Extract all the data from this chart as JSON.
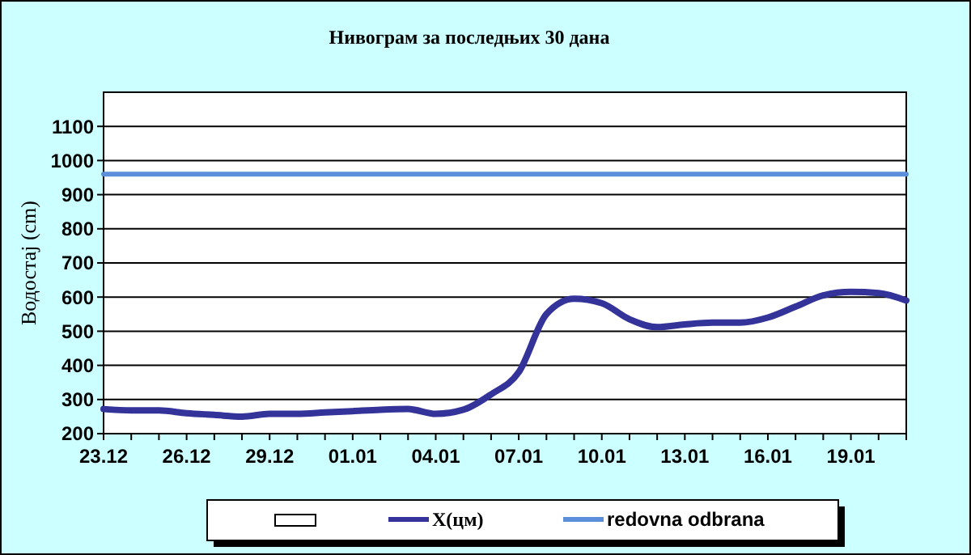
{
  "chart_data": {
    "type": "line",
    "title": "Нивограм за последњих 30 дана",
    "ylabel": "Водостај (cm)",
    "categories": [
      "23.12",
      null,
      null,
      "26.12",
      null,
      null,
      "29.12",
      null,
      null,
      "01.01",
      null,
      null,
      "04.01",
      null,
      null,
      "07.01",
      null,
      null,
      "10.01",
      null,
      null,
      "13.01",
      null,
      null,
      "16.01",
      null,
      null,
      "19.01",
      null,
      null
    ],
    "series": [
      {
        "name": "X(цм)",
        "color": "#333399",
        "values": [
          272,
          268,
          268,
          260,
          255,
          250,
          258,
          258,
          262,
          266,
          270,
          272,
          258,
          270,
          315,
          380,
          550,
          595,
          582,
          535,
          512,
          520,
          525,
          525,
          540,
          572,
          605,
          615,
          612,
          590
        ]
      },
      {
        "name": "redovna odbrana",
        "color": "#5b8fd9",
        "values": [
          960,
          960,
          960,
          960,
          960,
          960,
          960,
          960,
          960,
          960,
          960,
          960,
          960,
          960,
          960,
          960,
          960,
          960,
          960,
          960,
          960,
          960,
          960,
          960,
          960,
          960,
          960,
          960,
          960,
          960
        ]
      }
    ],
    "ylim": [
      200,
      1200
    ],
    "yticks": [
      200,
      300,
      400,
      500,
      600,
      700,
      800,
      900,
      1000,
      1100
    ],
    "grid": "y",
    "legend": "bottom",
    "marker": "none",
    "line_style": "solid"
  }
}
